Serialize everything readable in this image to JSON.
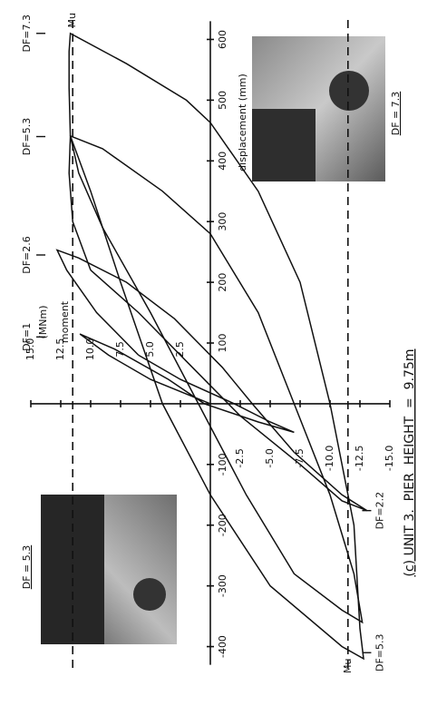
{
  "chart_data": {
    "type": "line",
    "title": "(c) UNIT 3.  PIER  HEIGHT  =  9.75m",
    "x_label": "displacement (mm)",
    "y_label": "moment",
    "y_unit": "(MNm)",
    "xlim": [
      -450,
      650
    ],
    "ylim": [
      -15,
      15
    ],
    "xticks": [
      -400,
      -300,
      -200,
      -100,
      100,
      200,
      300,
      400,
      500,
      600
    ],
    "yticks": [
      {
        "value": 15,
        "label": "15.0"
      },
      12.5,
      {
        "value": 10,
        "label": "10.0"
      },
      7.5,
      {
        "value": 5,
        "label": "5.0"
      },
      2.5,
      -2.5,
      {
        "value": -5,
        "label": "-5.0"
      },
      -7.5,
      {
        "value": -10,
        "label": "-10.0"
      },
      -12.5,
      {
        "value": -15,
        "label": "-15.0"
      }
    ],
    "rotated": true,
    "color": "#111111",
    "series": [
      {
        "x": [
          0,
          40,
          80,
          115,
          90,
          40,
          0,
          -30,
          -47,
          -30,
          0,
          40,
          80
        ],
        "values": [
          0,
          5,
          8.5,
          10.9,
          8,
          3.5,
          0.5,
          -4,
          -7,
          -5,
          -2,
          2.5,
          6
        ]
      },
      {
        "x": [
          80,
          150,
          220,
          253,
          240,
          200,
          140,
          60,
          0,
          -80,
          -150,
          -176,
          -160,
          -100,
          -20,
          60,
          150,
          220
        ],
        "values": [
          6,
          9.5,
          12,
          12.8,
          11,
          7,
          3,
          -1,
          -3.5,
          -7,
          -11,
          -13.1,
          -11,
          -7.5,
          -2.5,
          1.5,
          6,
          10
        ]
      },
      {
        "x": [
          220,
          300,
          380,
          441,
          420,
          350,
          280,
          150,
          0,
          -150,
          -280,
          -360,
          -340,
          -280,
          -150,
          0,
          150,
          290,
          380,
          441
        ],
        "values": [
          10,
          11.5,
          11.8,
          11.7,
          9,
          4,
          0,
          -4,
          -7,
          -10,
          -12,
          -12.7,
          -11,
          -7,
          -3,
          1,
          5,
          9,
          11,
          11.7
        ]
      },
      {
        "x": [
          441,
          520,
          580,
          610,
          560,
          500,
          463,
          350,
          200,
          0,
          -200,
          -370,
          -420,
          -400,
          -300,
          -150,
          0,
          200,
          350,
          441
        ],
        "values": [
          11.7,
          11.8,
          11.8,
          11.7,
          7,
          2,
          0,
          -4,
          -7.5,
          -10,
          -12,
          -12.5,
          -12.8,
          -11,
          -5,
          0,
          4,
          7.5,
          10,
          11.7
        ]
      }
    ],
    "limit_lines": [
      {
        "text": "Mu",
        "y": 11.5
      },
      {
        "text": "Mu",
        "y": -11.5
      }
    ],
    "annotations": [
      {
        "text": "DF=1",
        "x": 110,
        "y": 15.3
      },
      {
        "text": "DF=2.6",
        "x": 245,
        "y": 15.3
      },
      {
        "text": "DF=5.3",
        "x": 440,
        "y": 15.3
      },
      {
        "text": "DF=7.3",
        "x": 610,
        "y": 15.3
      },
      {
        "text": "DF=2.2",
        "x": -176,
        "y": -14.2
      },
      {
        "text": "DF=5.3",
        "x": -410,
        "y": -14.2
      }
    ],
    "photos": [
      {
        "label": "DF = 7.3"
      },
      {
        "label": "DF = 5.3"
      }
    ]
  }
}
